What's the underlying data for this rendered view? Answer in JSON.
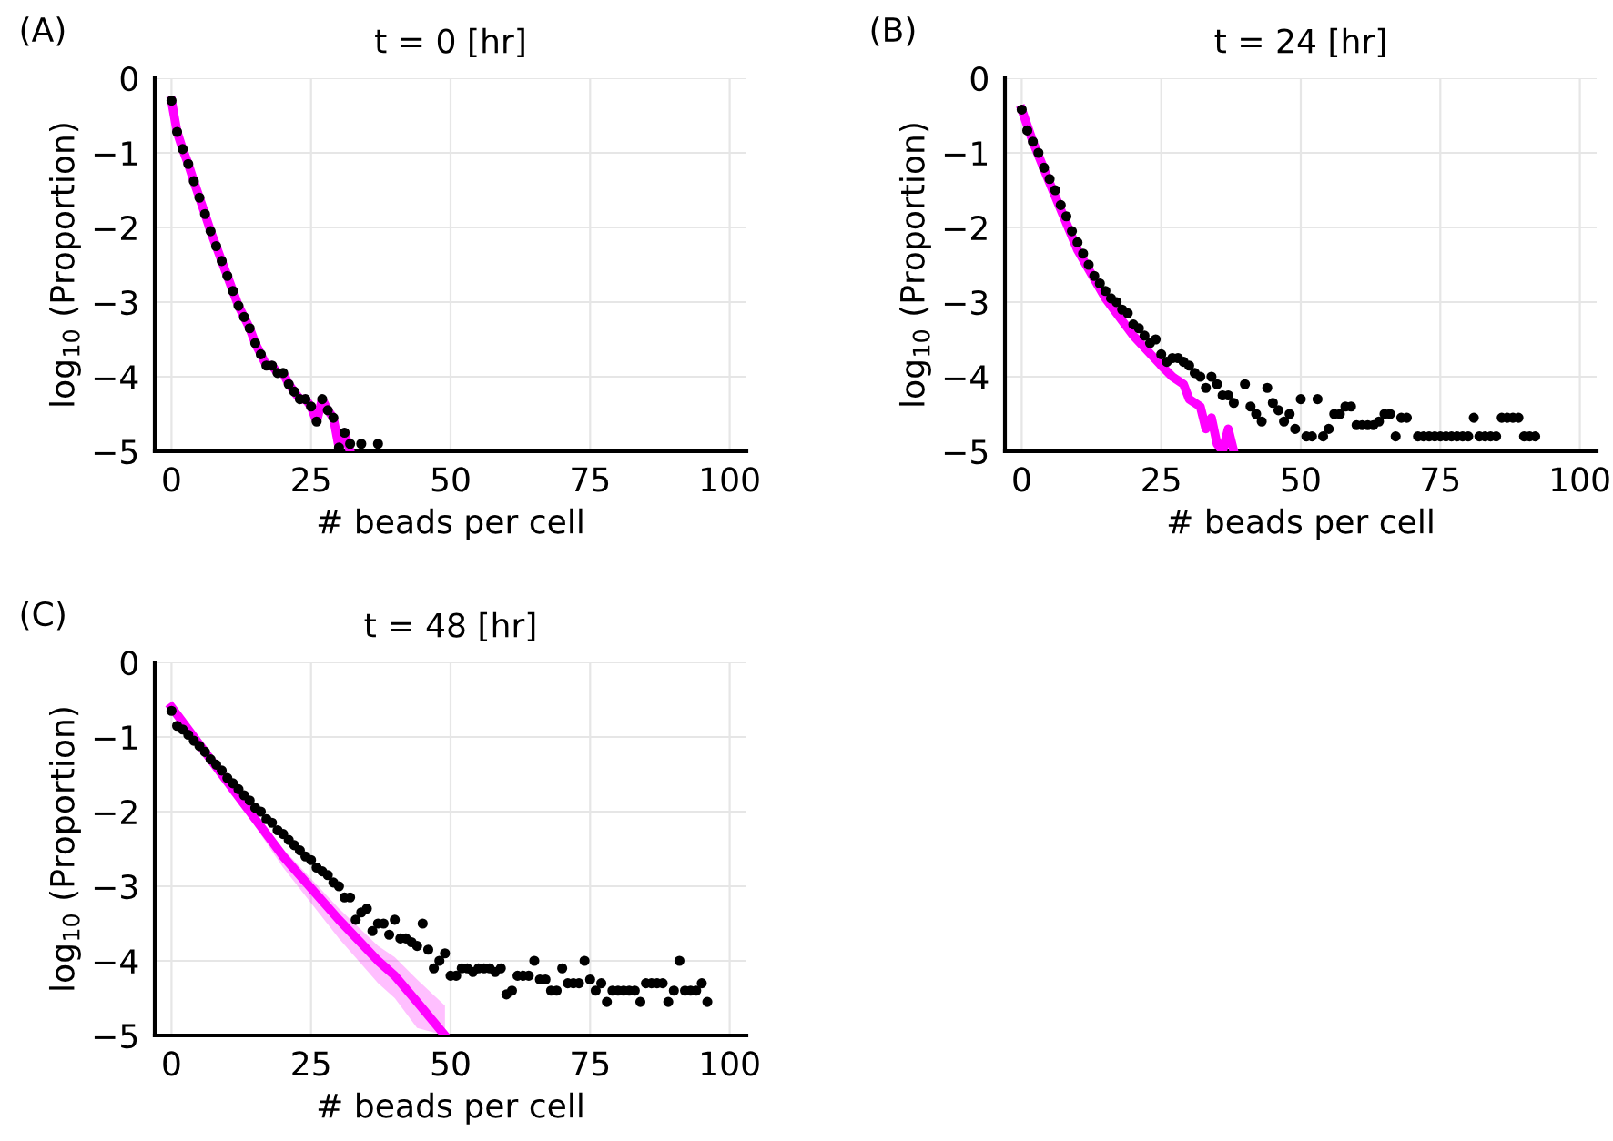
{
  "chart_data": [
    {
      "type": "line",
      "title": "t = 0 [hr]",
      "xlabel": "# beads per cell",
      "ylabel": "log$_{10}$ (Proportion)",
      "annotations": [
        "(A)"
      ],
      "xlim": [
        -3,
        103
      ],
      "xticks": [
        0,
        25,
        50,
        75,
        100
      ],
      "ylim": [
        -5,
        0
      ],
      "yticks": [
        0,
        -1,
        -2,
        -3,
        -4,
        -5
      ],
      "grid": true,
      "legend": false,
      "series": [
        {
          "color": "#ff00ff",
          "line_style": "solid",
          "marker": "none",
          "x": [
            0,
            1,
            2,
            3,
            4,
            5,
            6,
            7,
            8,
            9,
            10,
            11,
            12,
            13,
            14,
            15,
            16,
            17,
            18,
            19,
            20,
            21,
            22,
            23,
            24,
            25,
            26,
            27,
            28,
            29,
            30,
            31,
            32
          ],
          "values": [
            -0.3,
            -0.72,
            -0.95,
            -1.15,
            -1.38,
            -1.6,
            -1.82,
            -2.05,
            -2.25,
            -2.45,
            -2.65,
            -2.85,
            -3.05,
            -3.2,
            -3.35,
            -3.55,
            -3.7,
            -3.85,
            -3.85,
            -3.95,
            -3.95,
            -4.1,
            -4.2,
            -4.3,
            -4.3,
            -4.4,
            -4.6,
            -4.3,
            -4.45,
            -4.55,
            -4.95,
            -4.75,
            -5.0
          ]
        },
        {
          "type": "scatter",
          "color": "#000000",
          "marker": "circle",
          "x": [
            0,
            1,
            2,
            3,
            4,
            5,
            6,
            7,
            8,
            9,
            10,
            11,
            12,
            13,
            14,
            15,
            16,
            17,
            18,
            19,
            20,
            21,
            22,
            23,
            24,
            25,
            26,
            27,
            28,
            29,
            30,
            31,
            32,
            34,
            37
          ],
          "values": [
            -0.3,
            -0.72,
            -0.95,
            -1.15,
            -1.38,
            -1.6,
            -1.82,
            -2.05,
            -2.25,
            -2.45,
            -2.65,
            -2.85,
            -3.05,
            -3.2,
            -3.35,
            -3.55,
            -3.7,
            -3.85,
            -3.85,
            -3.95,
            -3.95,
            -4.1,
            -4.2,
            -4.3,
            -4.3,
            -4.4,
            -4.6,
            -4.3,
            -4.45,
            -4.55,
            -4.95,
            -4.75,
            -4.9,
            -4.9,
            -4.9
          ]
        }
      ]
    },
    {
      "type": "line",
      "title": "t = 24 [hr]",
      "xlabel": "# beads per cell",
      "ylabel": "log$_{10}$ (Proportion)",
      "annotations": [
        "(B)"
      ],
      "xlim": [
        -3,
        103
      ],
      "xticks": [
        0,
        25,
        50,
        75,
        100
      ],
      "ylim": [
        -5,
        0
      ],
      "yticks": [
        0,
        -1,
        -2,
        -3,
        -4,
        -5
      ],
      "grid": true,
      "legend": false,
      "series": [
        {
          "color": "#ff00ff",
          "line_style": "solid",
          "marker": "none",
          "x": [
            0,
            2,
            5,
            10,
            15,
            20,
            25,
            27,
            29,
            30,
            32,
            33,
            34,
            35,
            36,
            37,
            38
          ],
          "values": [
            -0.42,
            -0.85,
            -1.4,
            -2.3,
            -2.95,
            -3.45,
            -3.85,
            -4.0,
            -4.1,
            -4.3,
            -4.4,
            -4.7,
            -4.55,
            -4.9,
            -5.0,
            -4.7,
            -5.0
          ]
        },
        {
          "type": "scatter",
          "color": "#000000",
          "marker": "circle",
          "x": [
            0,
            1,
            2,
            3,
            4,
            5,
            6,
            7,
            8,
            9,
            10,
            11,
            12,
            13,
            14,
            15,
            16,
            17,
            18,
            19,
            20,
            21,
            22,
            23,
            24,
            25,
            26,
            27,
            28,
            29,
            30,
            31,
            32,
            33,
            34,
            35,
            36,
            37,
            38,
            40,
            41,
            42,
            43,
            44,
            45,
            46,
            47,
            48,
            49,
            50,
            51,
            52,
            53,
            54,
            55,
            56,
            57,
            58,
            59,
            60,
            61,
            62,
            63,
            64,
            65,
            66,
            67,
            68,
            69,
            71,
            72,
            73,
            74,
            75,
            76,
            77,
            78,
            79,
            80,
            81,
            82,
            83,
            84,
            85,
            86,
            87,
            88,
            89,
            90,
            91,
            92
          ],
          "values": [
            -0.42,
            -0.7,
            -0.85,
            -1.0,
            -1.2,
            -1.35,
            -1.5,
            -1.7,
            -1.85,
            -2.05,
            -2.2,
            -2.35,
            -2.5,
            -2.65,
            -2.75,
            -2.85,
            -2.95,
            -3.0,
            -3.1,
            -3.15,
            -3.3,
            -3.35,
            -3.45,
            -3.55,
            -3.5,
            -3.7,
            -3.8,
            -3.75,
            -3.75,
            -3.8,
            -3.85,
            -3.95,
            -4.0,
            -4.15,
            -4.0,
            -4.1,
            -4.25,
            -4.25,
            -4.35,
            -4.1,
            -4.4,
            -4.5,
            -4.6,
            -4.15,
            -4.35,
            -4.45,
            -4.6,
            -4.5,
            -4.7,
            -4.3,
            -4.8,
            -4.8,
            -4.3,
            -4.8,
            -4.7,
            -4.5,
            -4.5,
            -4.4,
            -4.4,
            -4.65,
            -4.65,
            -4.65,
            -4.65,
            -4.6,
            -4.5,
            -4.5,
            -4.8,
            -4.55,
            -4.55,
            -4.8,
            -4.8,
            -4.8,
            -4.8,
            -4.8,
            -4.8,
            -4.8,
            -4.8,
            -4.8,
            -4.8,
            -4.55,
            -4.8,
            -4.8,
            -4.8,
            -4.8,
            -4.55,
            -4.55,
            -4.55,
            -4.55,
            -4.8,
            -4.8,
            -4.8
          ]
        }
      ]
    },
    {
      "type": "line",
      "title": "t = 48 [hr]",
      "xlabel": "# beads per cell",
      "ylabel": "log$_{10}$ (Proportion)",
      "annotations": [
        "(C)"
      ],
      "xlim": [
        -3,
        103
      ],
      "xticks": [
        0,
        25,
        50,
        75,
        100
      ],
      "ylim": [
        -5,
        0
      ],
      "yticks": [
        0,
        -1,
        -2,
        -3,
        -4,
        -5
      ],
      "grid": true,
      "legend": false,
      "series": [
        {
          "color": "#ff00ff",
          "line_style": "solid",
          "marker": "none",
          "x": [
            0,
            10,
            20,
            30,
            37,
            40,
            44,
            49
          ],
          "values": [
            -0.6,
            -1.6,
            -2.6,
            -3.45,
            -4.0,
            -4.2,
            -4.55,
            -5.0
          ],
          "lower": [
            -0.65,
            -1.65,
            -2.75,
            -3.7,
            -4.3,
            -4.5,
            -4.9,
            -5.0
          ],
          "upper": [
            -0.55,
            -1.55,
            -2.5,
            -3.3,
            -3.8,
            -3.95,
            -4.25,
            -4.6
          ]
        },
        {
          "type": "scatter",
          "color": "#000000",
          "marker": "circle",
          "x": [
            0,
            1,
            2,
            3,
            4,
            5,
            6,
            7,
            8,
            9,
            10,
            11,
            12,
            13,
            14,
            15,
            16,
            17,
            18,
            19,
            20,
            21,
            22,
            23,
            24,
            25,
            26,
            27,
            28,
            29,
            30,
            31,
            32,
            33,
            34,
            35,
            36,
            37,
            38,
            39,
            40,
            41,
            42,
            43,
            44,
            45,
            46,
            47,
            48,
            49,
            50,
            51,
            52,
            53,
            54,
            55,
            56,
            57,
            58,
            59,
            60,
            61,
            62,
            63,
            64,
            65,
            66,
            67,
            68,
            69,
            70,
            71,
            72,
            73,
            74,
            75,
            76,
            77,
            78,
            79,
            80,
            81,
            82,
            83,
            84,
            85,
            86,
            87,
            88,
            89,
            90,
            91,
            92,
            93,
            94,
            95,
            96
          ],
          "values": [
            -0.65,
            -0.85,
            -0.9,
            -0.97,
            -1.05,
            -1.12,
            -1.2,
            -1.3,
            -1.37,
            -1.45,
            -1.55,
            -1.62,
            -1.7,
            -1.78,
            -1.85,
            -1.95,
            -2.0,
            -2.1,
            -2.15,
            -2.25,
            -2.3,
            -2.38,
            -2.45,
            -2.52,
            -2.6,
            -2.65,
            -2.75,
            -2.8,
            -2.85,
            -2.95,
            -3.0,
            -3.15,
            -3.15,
            -3.45,
            -3.35,
            -3.3,
            -3.6,
            -3.5,
            -3.5,
            -3.65,
            -3.45,
            -3.7,
            -3.7,
            -3.75,
            -3.8,
            -3.5,
            -3.85,
            -4.1,
            -4.0,
            -3.9,
            -4.2,
            -4.2,
            -4.1,
            -4.1,
            -4.15,
            -4.1,
            -4.1,
            -4.1,
            -4.15,
            -4.1,
            -4.45,
            -4.4,
            -4.2,
            -4.2,
            -4.2,
            -4.0,
            -4.25,
            -4.25,
            -4.4,
            -4.4,
            -4.1,
            -4.3,
            -4.3,
            -4.3,
            -4.0,
            -4.25,
            -4.4,
            -4.3,
            -4.55,
            -4.4,
            -4.4,
            -4.4,
            -4.4,
            -4.4,
            -4.55,
            -4.3,
            -4.3,
            -4.3,
            -4.3,
            -4.55,
            -4.4,
            -4.0,
            -4.4,
            -4.4,
            -4.4,
            -4.3,
            -4.55
          ]
        }
      ]
    }
  ]
}
